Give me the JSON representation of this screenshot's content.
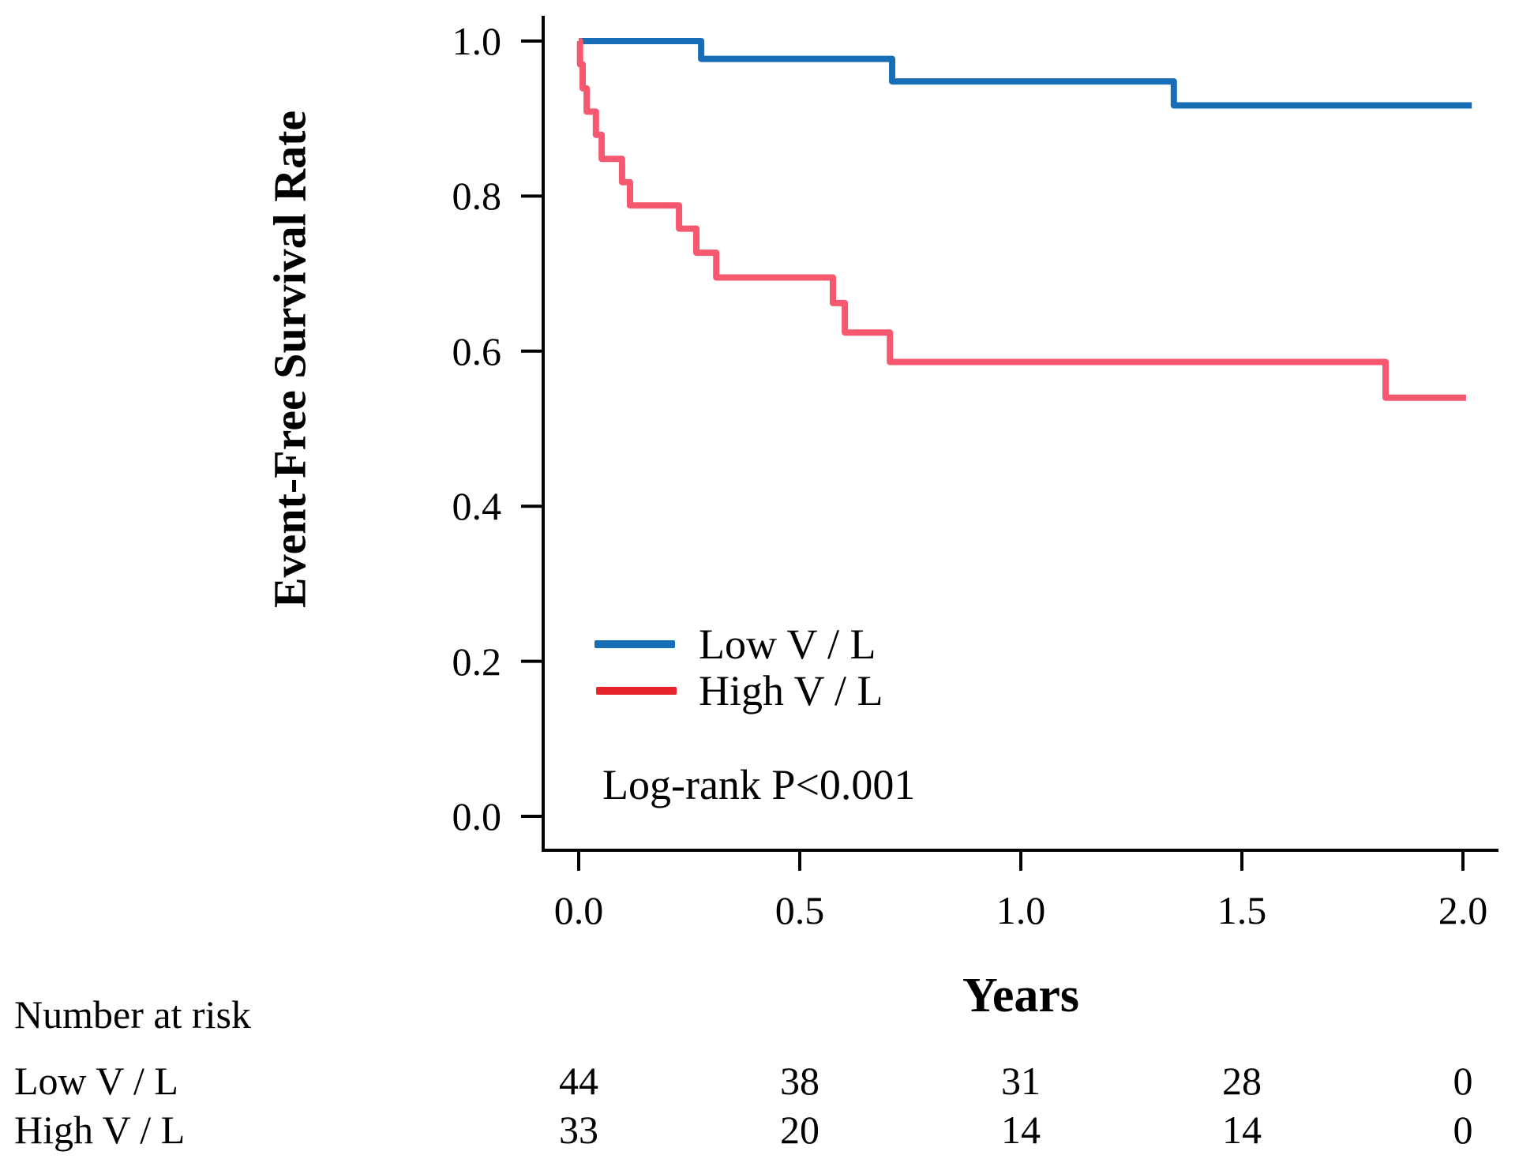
{
  "chart_data": {
    "type": "line",
    "subtype": "kaplan-meier-step-curves",
    "title": "",
    "xlabel": "Years",
    "ylabel": "Event-Free Survival Rate",
    "annotation": "Log-rank P<0.001",
    "xlim": [
      0.0,
      2.0
    ],
    "ylim": [
      0.0,
      1.0
    ],
    "grid": "off",
    "legend_position": "inside-lower-left",
    "x_ticks": [
      {
        "label": "0.0",
        "t": 0.0
      },
      {
        "label": "0.5",
        "t": 0.5
      },
      {
        "label": "1.0",
        "t": 1.0
      },
      {
        "label": "1.5",
        "t": 1.5
      },
      {
        "label": "2.0",
        "t": 2.0
      }
    ],
    "y_ticks": [
      {
        "label": "1.0",
        "v": 1.0
      },
      {
        "label": "0.8",
        "v": 0.8
      },
      {
        "label": "0.6",
        "v": 0.6
      },
      {
        "label": "0.4",
        "v": 0.4
      },
      {
        "label": "0.2",
        "v": 0.2
      },
      {
        "label": "0.0",
        "v": 0.0
      }
    ],
    "series": [
      {
        "name": "Low V / L",
        "line_color": "#176db6",
        "legend_color": "#176db6",
        "points": [
          [
            0.0,
            1.0
          ],
          [
            0.277,
            1.0
          ],
          [
            0.277,
            0.977
          ],
          [
            0.709,
            0.977
          ],
          [
            0.709,
            0.948
          ],
          [
            1.346,
            0.948
          ],
          [
            1.346,
            0.917
          ],
          [
            2.02,
            0.917
          ]
        ]
      },
      {
        "name": "High V / L",
        "line_color": "#f6596f",
        "legend_color": "#e8242b",
        "points": [
          [
            0.0,
            1.0
          ],
          [
            0.003,
            1.0
          ],
          [
            0.003,
            0.97
          ],
          [
            0.009,
            0.97
          ],
          [
            0.009,
            0.939
          ],
          [
            0.018,
            0.939
          ],
          [
            0.018,
            0.909
          ],
          [
            0.039,
            0.909
          ],
          [
            0.039,
            0.879
          ],
          [
            0.052,
            0.879
          ],
          [
            0.052,
            0.848
          ],
          [
            0.098,
            0.848
          ],
          [
            0.098,
            0.818
          ],
          [
            0.116,
            0.818
          ],
          [
            0.116,
            0.788
          ],
          [
            0.227,
            0.788
          ],
          [
            0.227,
            0.758
          ],
          [
            0.266,
            0.758
          ],
          [
            0.266,
            0.727
          ],
          [
            0.311,
            0.727
          ],
          [
            0.311,
            0.695
          ],
          [
            0.575,
            0.695
          ],
          [
            0.575,
            0.662
          ],
          [
            0.602,
            0.662
          ],
          [
            0.602,
            0.624
          ],
          [
            0.704,
            0.624
          ],
          [
            0.704,
            0.586
          ],
          [
            1.825,
            0.586
          ],
          [
            1.825,
            0.54
          ],
          [
            2.007,
            0.54
          ]
        ]
      }
    ],
    "risk_table": {
      "header": "Number at risk",
      "times": [
        0.0,
        0.5,
        1.0,
        1.5,
        2.0
      ],
      "rows": [
        {
          "label": "Low V / L",
          "counts": [
            "44",
            "38",
            "31",
            "28",
            "0"
          ]
        },
        {
          "label": "High V / L",
          "counts": [
            "33",
            "20",
            "14",
            "14",
            "0"
          ]
        }
      ]
    }
  }
}
